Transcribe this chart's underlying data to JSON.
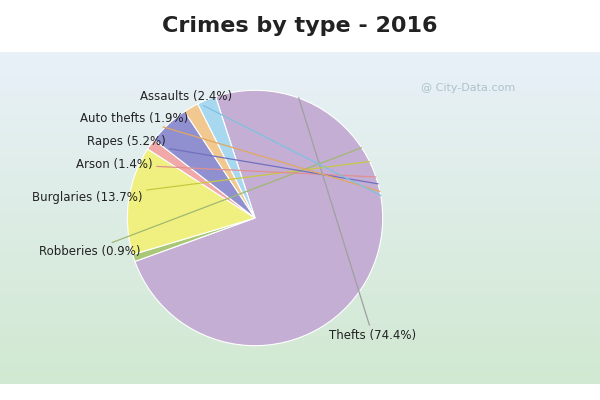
{
  "title": "Crimes by type - 2016",
  "labels": [
    "Thefts",
    "Robberies",
    "Burglaries",
    "Arson",
    "Rapes",
    "Auto thefts",
    "Assaults"
  ],
  "values": [
    74.4,
    0.9,
    13.7,
    1.4,
    5.2,
    1.9,
    2.4
  ],
  "colors": [
    "#c4aed4",
    "#a8c878",
    "#f0f080",
    "#f0a8a8",
    "#9090d0",
    "#f0c890",
    "#a8d8f0"
  ],
  "label_texts": [
    "Thefts (74.4%)",
    "Robberies (0.9%)",
    "Burglaries (13.7%)",
    "Arson (1.4%)",
    "Rapes (5.2%)",
    "Auto thefts (1.9%)",
    "Assaults (2.4%)"
  ],
  "bg_top": "#00e8f8",
  "bg_bottom": "#c8e8c0",
  "chart_bg_top": "#e8f0f8",
  "chart_bg_bottom": "#d0e8d0",
  "title_fontsize": 16,
  "title_color": "#222222",
  "startangle": 108,
  "label_fontsize": 8.5
}
